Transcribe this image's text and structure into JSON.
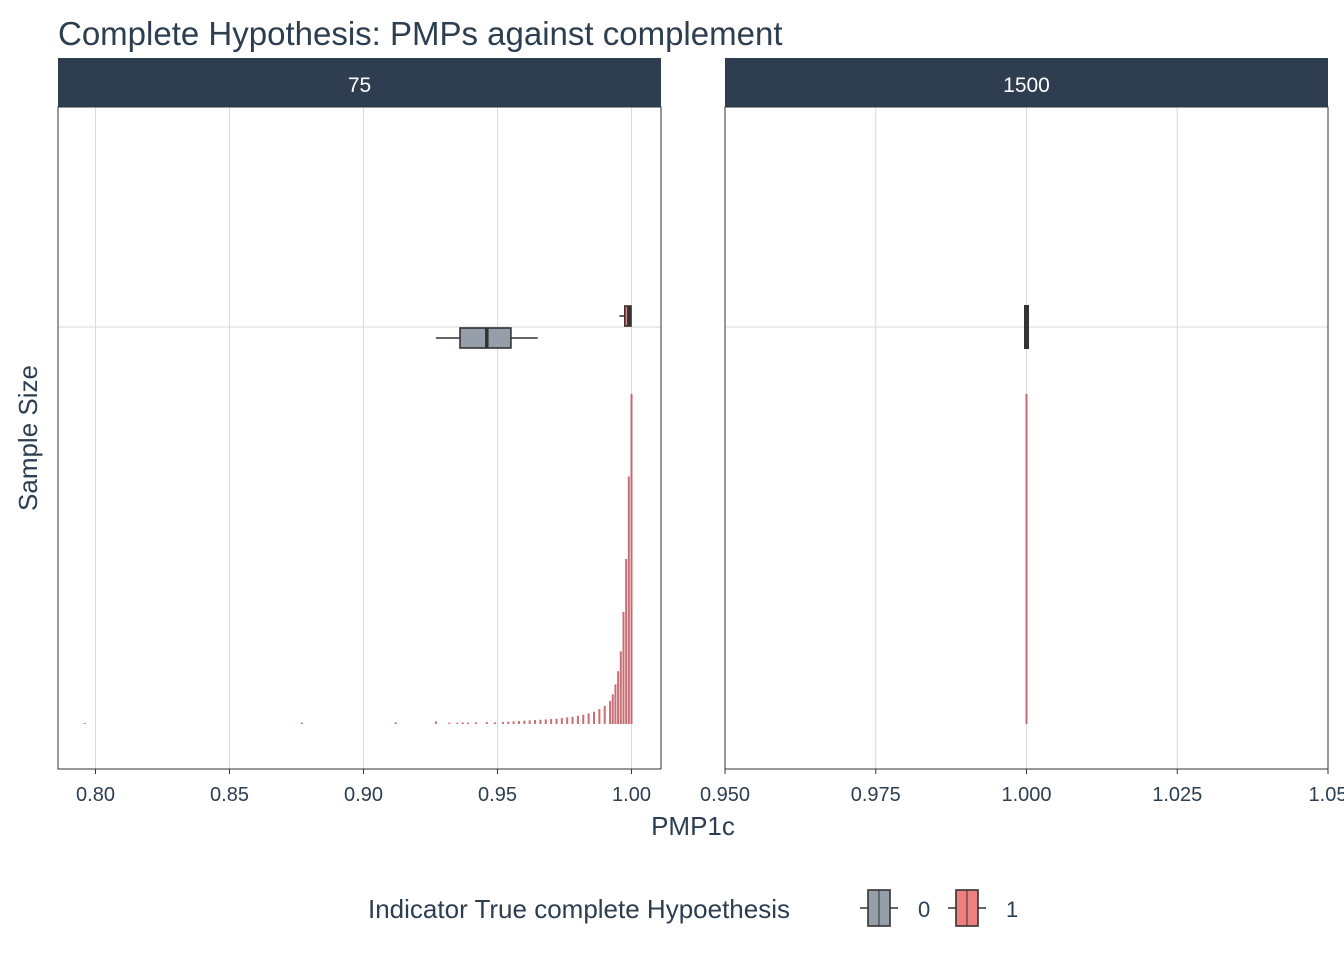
{
  "chart_data": {
    "type": "boxplot+histogram",
    "title": "Complete Hypothesis: PMPs against complement",
    "xlabel": "PMP1c",
    "ylabel": "Sample Size",
    "legend": {
      "title": "Indicator True complete Hypoethesis",
      "position": "bottom",
      "entries": [
        {
          "label": "0",
          "color": "#959ea9"
        },
        {
          "label": "1",
          "color": "#f08080"
        }
      ]
    },
    "colors": {
      "strip": "#2e3e50",
      "text": "#2c3e50",
      "grid": "#d9d9d9",
      "hist": "#c0555c"
    },
    "panels": [
      {
        "strip": "75",
        "xlim": [
          0.786,
          1.011
        ],
        "ticks": [
          0.8,
          0.85,
          0.9,
          0.95,
          1.0
        ],
        "tick_labels": [
          "0.80",
          "0.85",
          "0.90",
          "0.95",
          "1.00"
        ],
        "boxplots": [
          {
            "group": "0",
            "whisker_low": 0.927,
            "q1": 0.936,
            "median": 0.946,
            "q3": 0.955,
            "whisker_high": 0.965
          },
          {
            "group": "1",
            "whisker_low": 0.9955,
            "q1": 0.9975,
            "median": 0.999,
            "q3": 0.9998,
            "whisker_high": 1.0
          }
        ],
        "histogram": {
          "x": [
            0.796,
            0.877,
            0.912,
            0.927,
            0.932,
            0.935,
            0.937,
            0.939,
            0.942,
            0.946,
            0.949,
            0.952,
            0.954,
            0.956,
            0.958,
            0.96,
            0.962,
            0.964,
            0.966,
            0.968,
            0.97,
            0.972,
            0.974,
            0.976,
            0.978,
            0.98,
            0.982,
            0.984,
            0.986,
            0.988,
            0.99,
            0.992,
            0.993,
            0.994,
            0.995,
            0.996,
            0.997,
            0.998,
            0.999,
            1.0
          ],
          "y": [
            0.3,
            0.4,
            0.5,
            0.8,
            0.4,
            0.4,
            0.5,
            0.4,
            0.5,
            0.6,
            0.5,
            0.6,
            0.7,
            0.8,
            0.9,
            1.0,
            1.1,
            1.2,
            1.3,
            1.4,
            1.5,
            1.6,
            1.8,
            2.0,
            2.2,
            2.5,
            2.8,
            3.2,
            3.7,
            4.5,
            5.5,
            7,
            9,
            12,
            16,
            22,
            34,
            50,
            75,
            100
          ]
        }
      },
      {
        "strip": "1500",
        "xlim": [
          0.95,
          1.05
        ],
        "ticks": [
          0.95,
          0.975,
          1.0,
          1.025,
          1.05
        ],
        "tick_labels": [
          "0.950",
          "0.975",
          "1.000",
          "1.025",
          "1.05"
        ],
        "boxplots": [
          {
            "group": "1",
            "whisker_low": 1.0,
            "q1": 1.0,
            "median": 1.0,
            "q3": 1.0,
            "whisker_high": 1.0
          }
        ],
        "histogram": {
          "x": [
            1.0
          ],
          "y": [
            100
          ]
        }
      }
    ]
  }
}
